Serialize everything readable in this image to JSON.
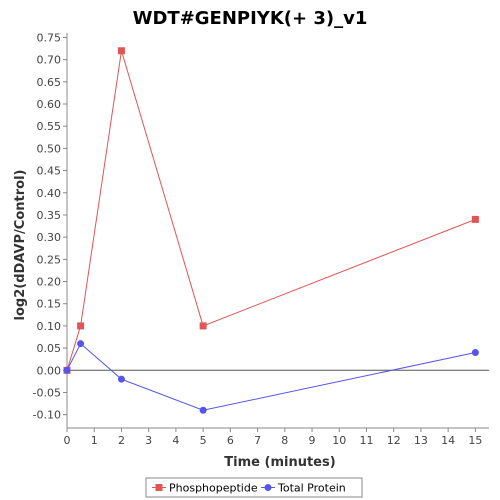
{
  "chart_data": {
    "type": "line",
    "title": "WDT#GENPIYK(+ 3)_v1",
    "xlabel": "Time (minutes)",
    "ylabel": "log2(dDAVP/Control)",
    "xlim": [
      0,
      15.5
    ],
    "ylim": [
      -0.13,
      0.76
    ],
    "x_ticks": [
      0,
      1,
      2,
      3,
      4,
      5,
      6,
      7,
      8,
      9,
      10,
      11,
      12,
      13,
      14,
      15
    ],
    "x_tick_labels": [
      "0",
      "1",
      "2",
      "3",
      "4",
      "5",
      "6",
      "7",
      "8",
      "9",
      "10",
      "11",
      "12",
      "13",
      "14",
      "15"
    ],
    "y_ticks": [
      -0.1,
      -0.05,
      0.0,
      0.05,
      0.1,
      0.15,
      0.2,
      0.25,
      0.3,
      0.35,
      0.4,
      0.45,
      0.5,
      0.55,
      0.6,
      0.65,
      0.7,
      0.75
    ],
    "y_tick_labels": [
      "-0.10",
      "-0.05",
      "0.00",
      "0.05",
      "0.10",
      "0.15",
      "0.20",
      "0.25",
      "0.30",
      "0.35",
      "0.40",
      "0.45",
      "0.50",
      "0.55",
      "0.60",
      "0.65",
      "0.70",
      "0.75"
    ],
    "zero_line": true,
    "grid": false,
    "legend_position": "bottom",
    "series": [
      {
        "name": "Phosphopeptide",
        "color": "#e05555",
        "marker": "square",
        "x": [
          0,
          0.5,
          2,
          5,
          15
        ],
        "y": [
          0.0,
          0.1,
          0.72,
          0.1,
          0.34
        ]
      },
      {
        "name": "Total Protein",
        "color": "#5555ee",
        "marker": "circle",
        "x": [
          0,
          0.5,
          2,
          5,
          15
        ],
        "y": [
          0.0,
          0.06,
          -0.02,
          -0.09,
          0.04
        ]
      }
    ]
  }
}
